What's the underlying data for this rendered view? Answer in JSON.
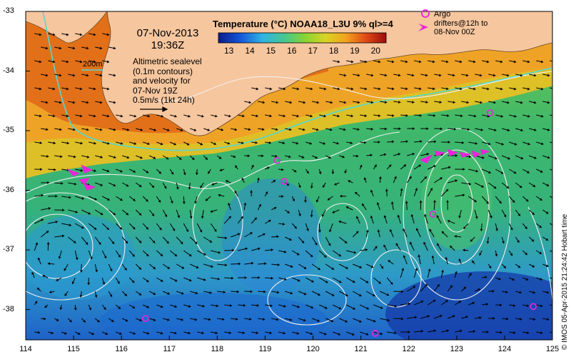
{
  "header": {
    "date": "07-Nov-2013",
    "time": "19:36Z",
    "colorbar_title": "Temperature (°C) NOAA18_L3U 9% ql>=4",
    "colorbar_ticks": [
      "13",
      "14",
      "15",
      "16",
      "17",
      "18",
      "19",
      "20"
    ],
    "colorbar_range": [
      12.5,
      20.5
    ]
  },
  "legend": {
    "contour_label": "200m",
    "altimetry_lines": [
      "Altimetric sealevel",
      "(0.1m contours)",
      "and velocity for",
      "07-Nov 19Z",
      "0.5m/s (1kt 24h)"
    ],
    "argo_lines": [
      "Argo",
      "drifters@12h to",
      "08-Nov 00Z"
    ]
  },
  "axes": {
    "x_ticks": [
      "114",
      "115",
      "116",
      "117",
      "118",
      "119",
      "120",
      "121",
      "122",
      "123",
      "124",
      "125"
    ],
    "y_ticks": [
      "-33",
      "-34",
      "-35",
      "-36",
      "-37",
      "-38"
    ]
  },
  "credit": "© IMOS 05-Apr-2015 21:24:42 Hobart time",
  "colors": {
    "land": "#f6c69e",
    "contour_200m": "#55d8d2",
    "sealevel_contour": "#f0f0f0",
    "vector": "#000000",
    "argo": "#ee22dd"
  },
  "argo_floats": [
    {
      "lon": 119.25,
      "lat": -35.5
    },
    {
      "lon": 119.4,
      "lat": -35.85
    },
    {
      "lon": 122.5,
      "lat": -36.4
    },
    {
      "lon": 123.7,
      "lat": -34.7
    },
    {
      "lon": 116.5,
      "lat": -38.15
    },
    {
      "lon": 121.3,
      "lat": -38.4
    },
    {
      "lon": 124.6,
      "lat": -37.95
    }
  ]
}
